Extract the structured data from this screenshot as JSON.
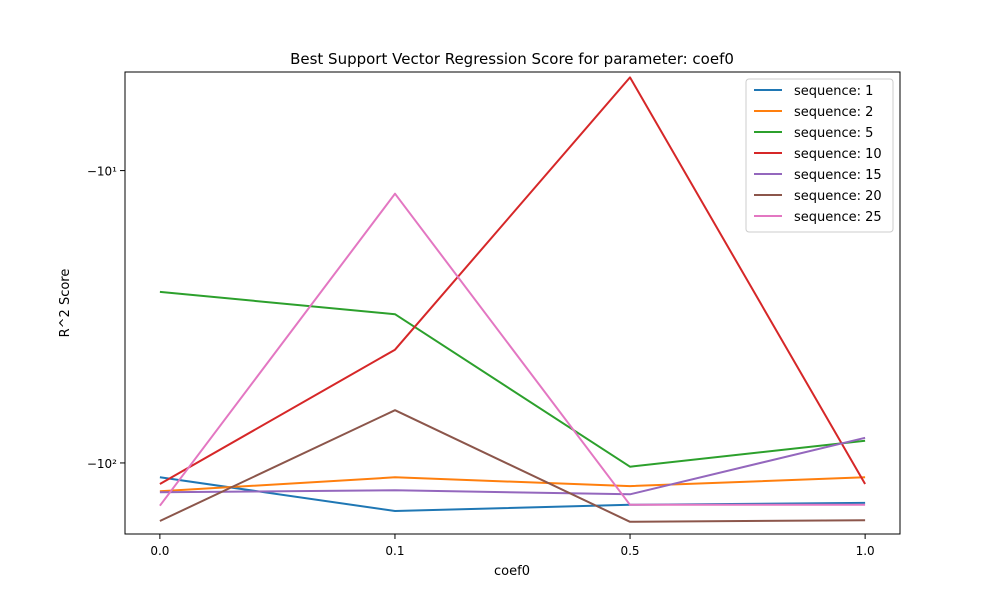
{
  "chart_data": {
    "type": "line",
    "title": "Best Support Vector Regression Score for parameter: coef0",
    "xlabel": "coef0",
    "ylabel": "R^2 Score",
    "x_scale": "categorical",
    "y_scale": "symlog",
    "categories": [
      "0.0",
      "0.1",
      "0.5",
      "1.0"
    ],
    "y_ticks": [
      {
        "value": -10,
        "label": "−10¹"
      },
      {
        "value": -100,
        "label": "−10²"
      }
    ],
    "ylim": [
      -175,
      -4.6
    ],
    "grid": false,
    "legend_position": "top-right",
    "series": [
      {
        "name": "sequence: 1",
        "color": "#1f77b4",
        "values": [
          -112,
          -146,
          -139,
          -137
        ]
      },
      {
        "name": "sequence: 2",
        "color": "#ff7f0e",
        "values": [
          -125,
          -112,
          -120,
          -112
        ]
      },
      {
        "name": "sequence: 5",
        "color": "#2ca02c",
        "values": [
          -26,
          -31,
          -103,
          -84
        ]
      },
      {
        "name": "sequence: 10",
        "color": "#d62728",
        "values": [
          -118,
          -41,
          -4.8,
          -118
        ]
      },
      {
        "name": "sequence: 15",
        "color": "#9467bd",
        "values": [
          -126,
          -124,
          -128,
          -82
        ]
      },
      {
        "name": "sequence: 20",
        "color": "#8c564b",
        "values": [
          -158,
          -66,
          -159,
          -157
        ]
      },
      {
        "name": "sequence: 25",
        "color": "#e377c2",
        "values": [
          -140,
          -12,
          -139,
          -139
        ]
      }
    ]
  }
}
